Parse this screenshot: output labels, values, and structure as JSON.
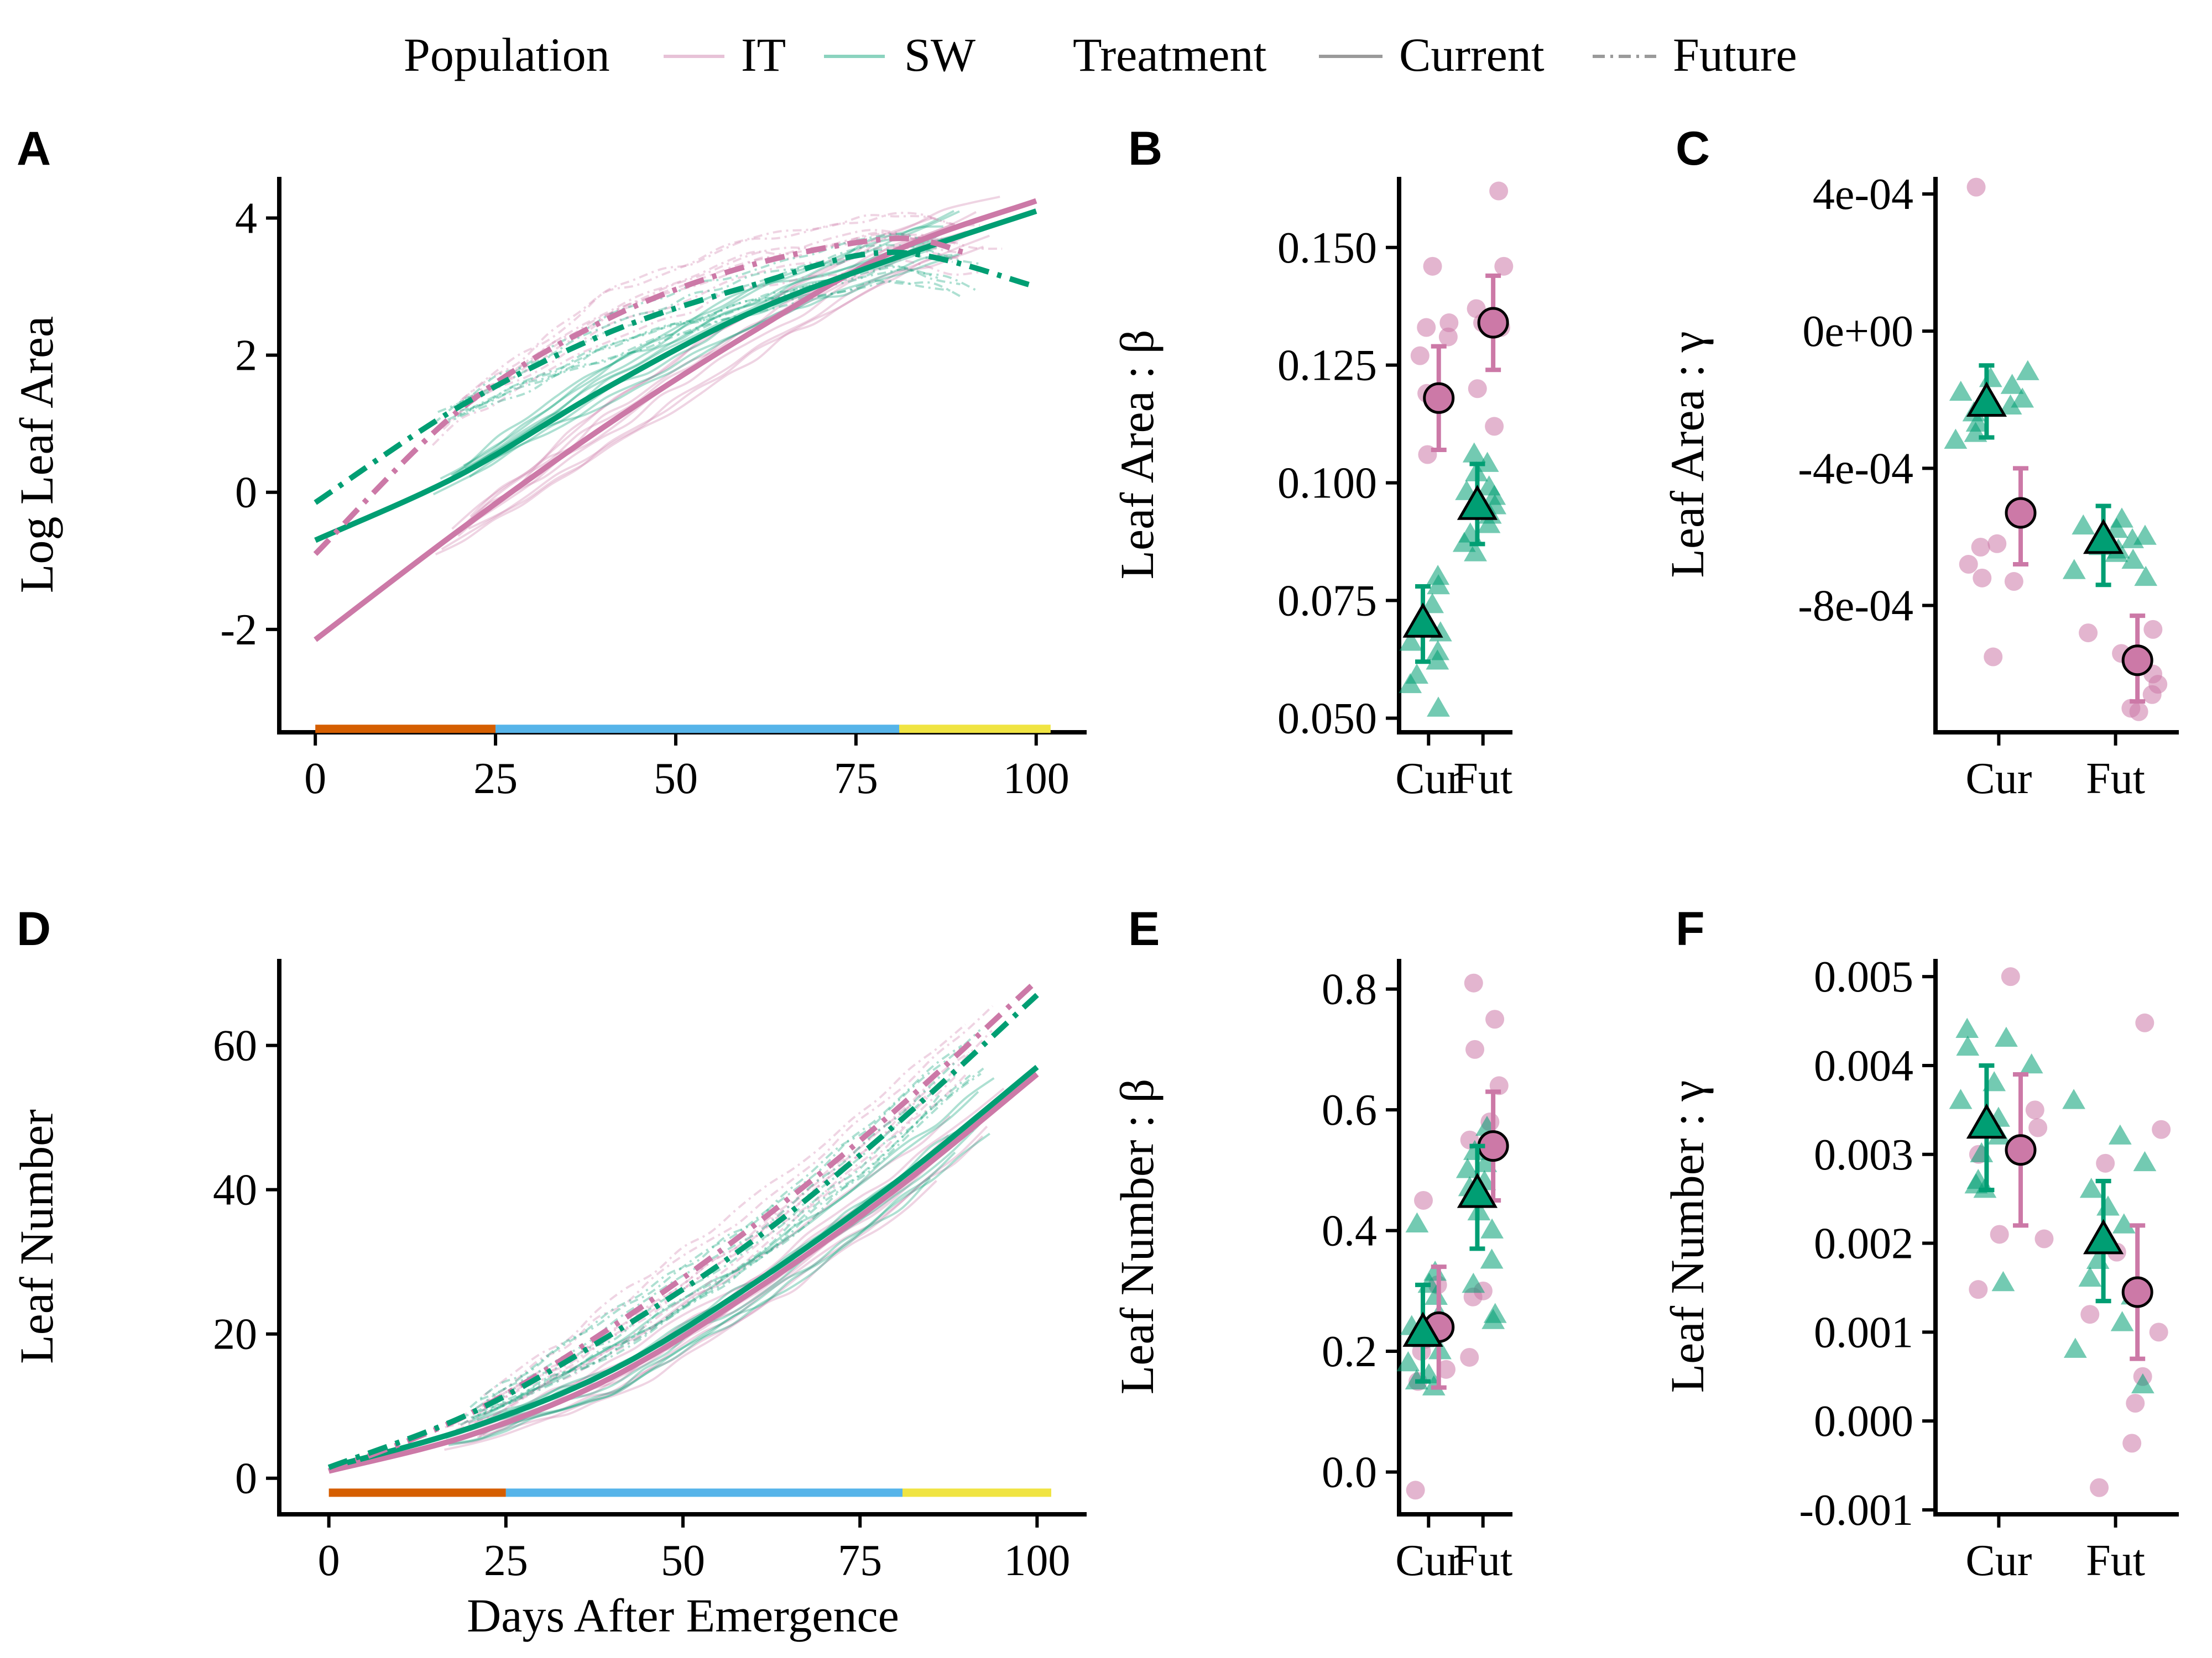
{
  "legend": {
    "population_title": "Population",
    "pop_items": [
      {
        "label": "IT",
        "color": "#cc79a7"
      },
      {
        "label": "SW",
        "color": "#009e73"
      }
    ],
    "treatment_title": "Treatment",
    "treat_items": [
      {
        "label": "Current",
        "dash": "solid"
      },
      {
        "label": "Future",
        "dash": "dashdot"
      }
    ]
  },
  "colors": {
    "IT": "#cc79a7",
    "SW": "#009e73",
    "stage1": "#d55e00",
    "stage2": "#56b4e9",
    "stage3": "#f0e442"
  },
  "chart_data": [
    {
      "panel": "A",
      "type": "line",
      "xlabel": "",
      "ylabel": "Log Leaf Area",
      "xlim": [
        -5,
        107
      ],
      "ylim": [
        -3.5,
        4.6
      ],
      "xticks": [
        "0",
        "25",
        "50",
        "75",
        "100"
      ],
      "yticks": [
        "-2",
        "0",
        "2",
        "4"
      ],
      "stage_bar": {
        "y": -3.45,
        "segments": [
          [
            0,
            25,
            "stage1"
          ],
          [
            25,
            81,
            "stage2"
          ],
          [
            81,
            102,
            "stage3"
          ]
        ]
      },
      "series": [
        {
          "name": "IT Current",
          "pop": "IT",
          "treatment": "Current",
          "x": [
            0,
            20,
            40,
            60,
            80,
            100
          ],
          "y": [
            -2.15,
            -0.55,
            0.95,
            2.3,
            3.5,
            4.25
          ]
        },
        {
          "name": "SW Current",
          "pop": "SW",
          "treatment": "Current",
          "x": [
            0,
            20,
            40,
            60,
            80,
            100
          ],
          "y": [
            -0.7,
            0.25,
            1.5,
            2.6,
            3.4,
            4.1
          ]
        },
        {
          "name": "IT Future",
          "pop": "IT",
          "treatment": "Future",
          "x": [
            0,
            20,
            40,
            60,
            80,
            90
          ],
          "y": [
            -0.9,
            1.2,
            2.5,
            3.3,
            3.7,
            3.5
          ]
        },
        {
          "name": "SW Future",
          "pop": "SW",
          "treatment": "Future",
          "x": [
            0,
            20,
            40,
            60,
            80,
            100
          ],
          "y": [
            -0.15,
            1.25,
            2.3,
            3.0,
            3.5,
            3.0
          ]
        }
      ]
    },
    {
      "panel": "B",
      "type": "scatter",
      "ylabel": "Leaf Area : β",
      "categories": [
        "Cur",
        "Fut"
      ],
      "ylim": [
        0.047,
        0.165
      ],
      "yticks": [
        "0.050",
        "0.075",
        "0.100",
        "0.125",
        "0.150"
      ],
      "series": [
        {
          "name": "IT",
          "points": {
            "Cur": [
              0.146,
              0.134,
              0.133,
              0.131,
              0.127,
              0.119,
              0.106
            ],
            "Fut": [
              0.162,
              0.146,
              0.137,
              0.134,
              0.134,
              0.133,
              0.12,
              0.112
            ]
          },
          "mean": {
            "Cur": 0.118,
            "Fut": 0.134
          },
          "ci": {
            "Cur": [
              0.107,
              0.129
            ],
            "Fut": [
              0.124,
              0.144
            ]
          }
        },
        {
          "name": "SW",
          "points": {
            "Cur": [
              0.08,
              0.078,
              0.074,
              0.072,
              0.07,
              0.068,
              0.066,
              0.064,
              0.062,
              0.059,
              0.057,
              0.052
            ],
            "Fut": [
              0.106,
              0.104,
              0.102,
              0.099,
              0.098,
              0.097,
              0.095,
              0.093,
              0.091,
              0.089,
              0.087,
              0.085
            ]
          },
          "mean": {
            "Cur": 0.07,
            "Fut": 0.095
          },
          "ci": {
            "Cur": [
              0.062,
              0.078
            ],
            "Fut": [
              0.087,
              0.104
            ]
          }
        }
      ]
    },
    {
      "panel": "C",
      "type": "scatter",
      "ylabel": "Leaf Area : γ",
      "categories": [
        "Cur",
        "Fut"
      ],
      "ylim": [
        -0.00117,
        0.00045
      ],
      "yticks": [
        "4e-04",
        "0e+00",
        "-4e-04",
        "-8e-04"
      ],
      "ytick_values": [
        0.0004,
        0.0,
        -0.0004,
        -0.0008
      ],
      "series": [
        {
          "name": "IT",
          "points": {
            "Cur": [
              0.00042,
              -0.00062,
              -0.00063,
              -0.00068,
              -0.00072,
              -0.00073,
              -0.00095
            ],
            "Fut": [
              -0.00087,
              -0.00088,
              -0.00094,
              -0.001,
              -0.00103,
              -0.00106,
              -0.0011,
              -0.00111
            ]
          },
          "mean": {
            "Cur": -0.00053,
            "Fut": -0.00096
          },
          "ci": {
            "Cur": [
              -0.00068,
              -0.0004
            ],
            "Fut": [
              -0.00108,
              -0.00083
            ]
          }
        },
        {
          "name": "SW",
          "points": {
            "Cur": [
              -0.00012,
              -0.00014,
              -0.00016,
              -0.00018,
              -0.0002,
              -0.00021,
              -0.00022,
              -0.00024,
              -0.00027,
              -0.0003,
              -0.00032
            ],
            "Fut": [
              -0.00055,
              -0.00057,
              -0.00058,
              -0.0006,
              -0.00061,
              -0.00063,
              -0.00064,
              -0.00065,
              -0.00067,
              -0.0007,
              -0.00072
            ]
          },
          "mean": {
            "Cur": -0.00021,
            "Fut": -0.00061
          },
          "ci": {
            "Cur": [
              -0.00031,
              -0.0001
            ],
            "Fut": [
              -0.00074,
              -0.00051
            ]
          }
        }
      ]
    },
    {
      "panel": "D",
      "type": "line",
      "xlabel": "Days After Emergence",
      "ylabel": "Leaf Number",
      "xlim": [
        -7,
        107
      ],
      "ylim": [
        -5,
        72
      ],
      "xticks": [
        "0",
        "25",
        "50",
        "75",
        "100"
      ],
      "yticks": [
        "0",
        "20",
        "40",
        "60"
      ],
      "stage_bar": {
        "y": -2,
        "segments": [
          [
            0,
            25,
            "stage1"
          ],
          [
            25,
            81,
            "stage2"
          ],
          [
            81,
            102,
            "stage3"
          ]
        ]
      },
      "series": [
        {
          "name": "IT Current",
          "pop": "IT",
          "treatment": "Current",
          "x": [
            0,
            20,
            40,
            60,
            80,
            100
          ],
          "y": [
            1,
            6,
            14,
            26,
            40,
            56
          ]
        },
        {
          "name": "SW Current",
          "pop": "SW",
          "treatment": "Current",
          "x": [
            0,
            20,
            40,
            60,
            80,
            100
          ],
          "y": [
            1.5,
            7,
            15,
            27,
            41,
            57
          ]
        },
        {
          "name": "IT Future",
          "pop": "IT",
          "treatment": "Future",
          "x": [
            0,
            20,
            40,
            60,
            80,
            100
          ],
          "y": [
            1,
            9,
            21,
            35,
            51,
            69
          ]
        },
        {
          "name": "SW Future",
          "pop": "SW",
          "treatment": "Future",
          "x": [
            0,
            20,
            40,
            60,
            80,
            100
          ],
          "y": [
            1.5,
            9,
            20,
            33,
            49,
            67
          ]
        }
      ]
    },
    {
      "panel": "E",
      "type": "scatter",
      "ylabel": "Leaf Number : β",
      "categories": [
        "Cur",
        "Fut"
      ],
      "ylim": [
        -0.07,
        0.85
      ],
      "yticks": [
        "0.0",
        "0.2",
        "0.4",
        "0.6",
        "0.8"
      ],
      "series": [
        {
          "name": "IT",
          "points": {
            "Cur": [
              0.45,
              0.31,
              0.22,
              0.2,
              0.17,
              0.15,
              -0.03
            ],
            "Fut": [
              0.81,
              0.75,
              0.7,
              0.64,
              0.58,
              0.55,
              0.3,
              0.29,
              0.19
            ]
          },
          "mean": {
            "Cur": 0.24,
            "Fut": 0.54
          },
          "ci": {
            "Cur": [
              0.14,
              0.34
            ],
            "Fut": [
              0.45,
              0.63
            ]
          }
        },
        {
          "name": "SW",
          "points": {
            "Cur": [
              0.41,
              0.33,
              0.31,
              0.29,
              0.26,
              0.24,
              0.22,
              0.2,
              0.18,
              0.16,
              0.15,
              0.14
            ],
            "Fut": [
              0.57,
              0.53,
              0.51,
              0.5,
              0.48,
              0.47,
              0.46,
              0.43,
              0.4,
              0.35,
              0.31,
              0.26,
              0.25
            ]
          },
          "mean": {
            "Cur": 0.23,
            "Fut": 0.46
          },
          "ci": {
            "Cur": [
              0.15,
              0.31
            ],
            "Fut": [
              0.37,
              0.54
            ]
          }
        }
      ]
    },
    {
      "panel": "F",
      "type": "scatter",
      "ylabel": "Leaf Number : γ",
      "categories": [
        "Cur",
        "Fut"
      ],
      "ylim": [
        -0.00105,
        0.0052
      ],
      "yticks": [
        "0.005",
        "0.004",
        "0.003",
        "0.002",
        "0.001",
        "0.000",
        "-0.001"
      ],
      "ytick_values": [
        0.005,
        0.004,
        0.003,
        0.002,
        0.001,
        0.0,
        -0.001
      ],
      "series": [
        {
          "name": "IT",
          "points": {
            "Cur": [
              0.005,
              0.0035,
              0.0033,
              0.0031,
              0.003,
              0.0021,
              0.00205,
              0.00148
            ],
            "Fut": [
              0.00448,
              0.00328,
              0.0029,
              0.0019,
              0.0012,
              0.001,
              0.0005,
              0.0002,
              -0.00025,
              -0.00075
            ]
          },
          "mean": {
            "Cur": 0.00305,
            "Fut": 0.00145
          },
          "ci": {
            "Cur": [
              0.0022,
              0.0039
            ],
            "Fut": [
              0.0007,
              0.0022
            ]
          }
        },
        {
          "name": "SW",
          "points": {
            "Cur": [
              0.0044,
              0.0043,
              0.0042,
              0.004,
              0.0038,
              0.0036,
              0.0034,
              0.0032,
              0.003,
              0.0027,
              0.00265,
              0.0026,
              0.00155
            ],
            "Fut": [
              0.0036,
              0.0032,
              0.0029,
              0.0026,
              0.0024,
              0.0022,
              0.002,
              0.0018,
              0.0016,
              0.0014,
              0.0011,
              0.0008,
              0.0004
            ]
          },
          "mean": {
            "Cur": 0.00333,
            "Fut": 0.00203
          },
          "ci": {
            "Cur": [
              0.0026,
              0.004
            ],
            "Fut": [
              0.00135,
              0.0027
            ]
          }
        }
      ]
    }
  ]
}
